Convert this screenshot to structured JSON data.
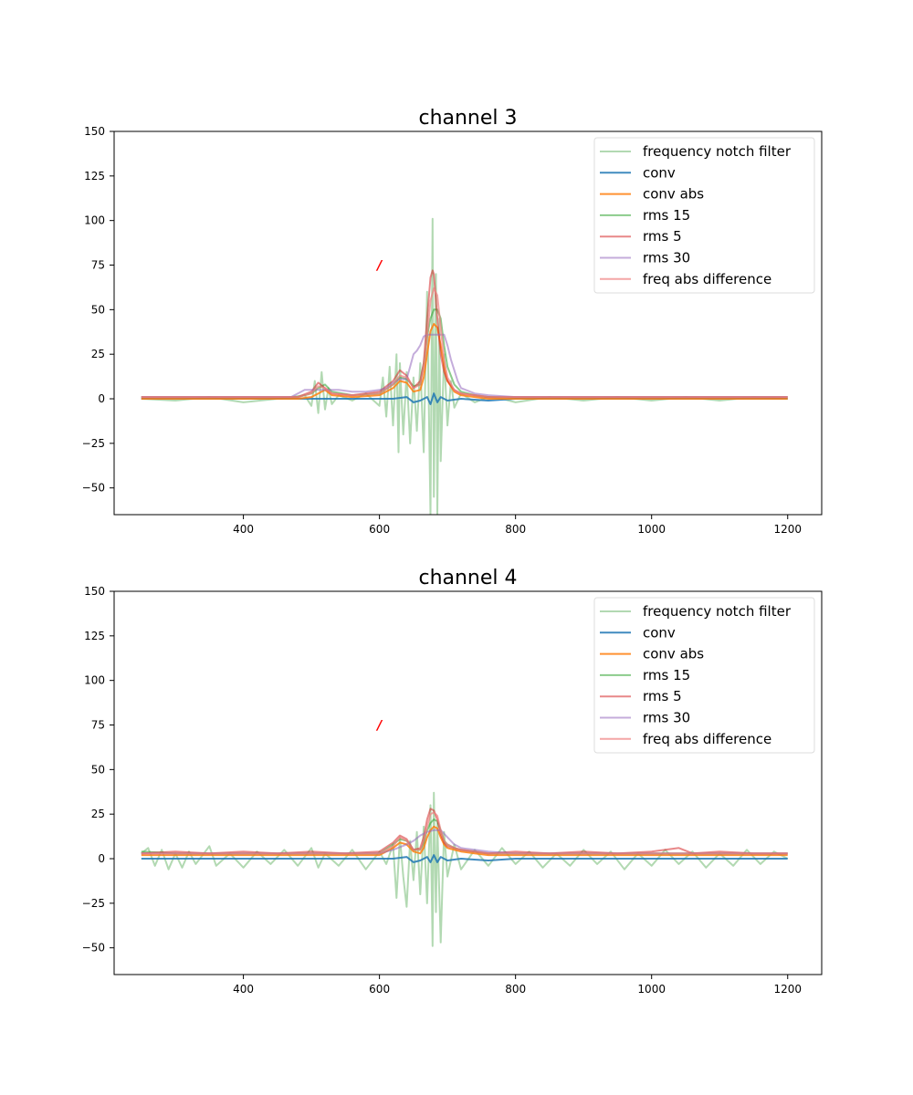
{
  "chart_data": [
    {
      "type": "line",
      "title": "channel 3",
      "xlabel": "",
      "ylabel": "",
      "xlim": [
        210,
        1250
      ],
      "ylim": [
        -65,
        150
      ],
      "xticks": [
        400,
        600,
        800,
        1000,
        1200
      ],
      "yticks": [
        -50,
        -25,
        0,
        25,
        50,
        75,
        100,
        125,
        150
      ],
      "legend_position": "upper right",
      "marker": {
        "x": 600,
        "y": 75,
        "label": "/",
        "color": "#ff0000"
      },
      "series": [
        {
          "name": "frequency notch filter",
          "color": "#7fbf7f",
          "opacity": 0.6,
          "x": [
            250,
            300,
            350,
            400,
            450,
            490,
            500,
            505,
            510,
            515,
            520,
            525,
            530,
            540,
            560,
            580,
            600,
            605,
            610,
            615,
            620,
            625,
            628,
            630,
            635,
            640,
            645,
            650,
            655,
            660,
            665,
            670,
            675,
            678,
            680,
            683,
            685,
            688,
            690,
            695,
            700,
            705,
            710,
            720,
            740,
            760,
            780,
            800,
            850,
            900,
            950,
            1000,
            1050,
            1100,
            1150,
            1200
          ],
          "y": [
            0,
            -1,
            1,
            -2,
            0,
            2,
            -4,
            10,
            -8,
            15,
            -6,
            6,
            -3,
            2,
            -1,
            3,
            -4,
            12,
            -10,
            18,
            -15,
            25,
            -30,
            20,
            -20,
            15,
            -25,
            12,
            -18,
            20,
            -30,
            60,
            -65,
            101,
            -55,
            70,
            -65,
            45,
            -35,
            25,
            -15,
            10,
            -5,
            3,
            -2,
            1,
            0,
            -2,
            1,
            -1,
            1,
            -1,
            1,
            -1,
            1,
            0
          ]
        },
        {
          "name": "conv",
          "color": "#1f77b4",
          "opacity": 0.85,
          "x": [
            250,
            400,
            500,
            560,
            600,
            620,
            640,
            650,
            660,
            670,
            675,
            680,
            685,
            690,
            700,
            720,
            760,
            800,
            900,
            1000,
            1200
          ],
          "y": [
            0,
            0,
            0,
            0,
            0,
            0,
            1,
            -2,
            -1,
            1,
            -3,
            3,
            -2,
            1,
            -1,
            0,
            -1,
            0,
            0,
            0,
            0
          ]
        },
        {
          "name": "conv abs",
          "color": "#ff7f0e",
          "opacity": 0.85,
          "x": [
            250,
            400,
            480,
            500,
            510,
            520,
            530,
            560,
            600,
            620,
            630,
            640,
            650,
            660,
            665,
            670,
            675,
            680,
            685,
            690,
            695,
            700,
            710,
            720,
            740,
            760,
            800,
            900,
            1000,
            1200
          ],
          "y": [
            0,
            0,
            0,
            1,
            3,
            5,
            2,
            1,
            2,
            6,
            10,
            9,
            4,
            5,
            12,
            25,
            38,
            42,
            40,
            30,
            18,
            10,
            4,
            2,
            1,
            0,
            0,
            0,
            0,
            0
          ]
        },
        {
          "name": "rms 15",
          "color": "#2ca02c",
          "opacity": 0.55,
          "x": [
            250,
            400,
            480,
            500,
            510,
            520,
            530,
            560,
            600,
            620,
            630,
            640,
            650,
            660,
            665,
            670,
            675,
            680,
            685,
            690,
            695,
            700,
            710,
            720,
            740,
            760,
            800,
            900,
            1000,
            1200
          ],
          "y": [
            1,
            1,
            1,
            3,
            6,
            8,
            4,
            2,
            3,
            8,
            12,
            11,
            7,
            8,
            20,
            35,
            45,
            50,
            50,
            45,
            30,
            18,
            8,
            4,
            2,
            1,
            1,
            1,
            1,
            1
          ]
        },
        {
          "name": "rms 5",
          "color": "#d62728",
          "opacity": 0.55,
          "x": [
            250,
            400,
            480,
            500,
            510,
            520,
            530,
            560,
            600,
            620,
            630,
            640,
            650,
            660,
            665,
            670,
            675,
            678,
            680,
            683,
            685,
            690,
            695,
            700,
            710,
            720,
            740,
            760,
            800,
            900,
            1000,
            1200
          ],
          "y": [
            1,
            1,
            1,
            4,
            9,
            6,
            3,
            2,
            4,
            10,
            16,
            13,
            6,
            10,
            20,
            45,
            68,
            72,
            70,
            55,
            45,
            25,
            15,
            10,
            5,
            3,
            2,
            1,
            1,
            1,
            1,
            1
          ]
        },
        {
          "name": "rms 30",
          "color": "#9467bd",
          "opacity": 0.55,
          "x": [
            250,
            400,
            470,
            480,
            490,
            500,
            520,
            540,
            560,
            580,
            600,
            610,
            620,
            630,
            640,
            645,
            650,
            655,
            660,
            665,
            670,
            680,
            690,
            695,
            700,
            705,
            710,
            715,
            720,
            740,
            760,
            800,
            1000,
            1200
          ],
          "y": [
            1,
            1,
            1,
            3,
            5,
            5,
            5,
            5,
            4,
            4,
            5,
            6,
            9,
            11,
            11,
            18,
            25,
            27,
            30,
            35,
            36,
            36,
            36,
            36,
            30,
            22,
            16,
            10,
            6,
            3,
            2,
            1,
            1,
            1
          ]
        },
        {
          "name": "freq abs difference",
          "color": "#f08080",
          "opacity": 0.7,
          "x": [
            250,
            400,
            480,
            500,
            510,
            520,
            530,
            560,
            600,
            620,
            630,
            640,
            650,
            660,
            665,
            670,
            675,
            680,
            685,
            690,
            695,
            700,
            710,
            720,
            740,
            760,
            800,
            900,
            1000,
            1200
          ],
          "y": [
            1,
            1,
            1,
            3,
            7,
            6,
            3,
            2,
            3,
            8,
            13,
            12,
            6,
            8,
            18,
            35,
            55,
            62,
            58,
            40,
            22,
            12,
            5,
            3,
            2,
            1,
            1,
            1,
            1,
            1
          ]
        }
      ]
    },
    {
      "type": "line",
      "title": "channel 4",
      "xlabel": "",
      "ylabel": "",
      "xlim": [
        210,
        1250
      ],
      "ylim": [
        -65,
        150
      ],
      "xticks": [
        400,
        600,
        800,
        1000,
        1200
      ],
      "yticks": [
        -50,
        -25,
        0,
        25,
        50,
        75,
        100,
        125,
        150
      ],
      "legend_position": "upper right",
      "marker": {
        "x": 600,
        "y": 75,
        "label": "/",
        "color": "#ff0000"
      },
      "series": [
        {
          "name": "frequency notch filter",
          "color": "#7fbf7f",
          "opacity": 0.6,
          "x": [
            250,
            260,
            270,
            280,
            290,
            300,
            310,
            320,
            330,
            340,
            350,
            360,
            380,
            400,
            420,
            440,
            460,
            480,
            500,
            510,
            520,
            540,
            560,
            580,
            600,
            610,
            620,
            625,
            630,
            635,
            640,
            645,
            650,
            655,
            660,
            665,
            670,
            675,
            678,
            680,
            683,
            685,
            690,
            695,
            700,
            710,
            720,
            740,
            760,
            780,
            800,
            820,
            840,
            860,
            880,
            900,
            920,
            940,
            960,
            980,
            1000,
            1020,
            1040,
            1060,
            1080,
            1100,
            1120,
            1140,
            1160,
            1180,
            1200
          ],
          "y": [
            3,
            6,
            -4,
            5,
            -6,
            3,
            -5,
            4,
            -3,
            2,
            7,
            -4,
            3,
            -5,
            4,
            -3,
            5,
            -4,
            6,
            -5,
            3,
            -4,
            5,
            -6,
            4,
            -3,
            8,
            -22,
            12,
            -10,
            -27,
            10,
            -12,
            15,
            -20,
            18,
            -25,
            30,
            -49,
            37,
            -30,
            20,
            -47,
            15,
            -10,
            8,
            -6,
            5,
            -4,
            6,
            -3,
            4,
            -5,
            3,
            -4,
            5,
            -3,
            4,
            -6,
            3,
            -4,
            5,
            -3,
            4,
            -5,
            3,
            -4,
            5,
            -3,
            4,
            0
          ]
        },
        {
          "name": "conv",
          "color": "#1f77b4",
          "opacity": 0.85,
          "x": [
            250,
            400,
            500,
            560,
            600,
            620,
            640,
            650,
            660,
            670,
            675,
            680,
            685,
            690,
            700,
            720,
            760,
            800,
            900,
            1000,
            1100,
            1200
          ],
          "y": [
            0,
            0,
            0,
            0,
            0,
            0,
            1,
            -2,
            -1,
            1,
            -2,
            2,
            -2,
            1,
            -1,
            0,
            -1,
            0,
            0,
            0,
            0,
            0
          ]
        },
        {
          "name": "conv abs",
          "color": "#ff7f0e",
          "opacity": 0.85,
          "x": [
            250,
            300,
            400,
            500,
            600,
            620,
            630,
            640,
            650,
            660,
            665,
            670,
            675,
            680,
            685,
            690,
            695,
            700,
            710,
            720,
            740,
            760,
            800,
            900,
            1000,
            1100,
            1200
          ],
          "y": [
            2,
            2,
            2,
            2,
            2,
            6,
            9,
            8,
            4,
            3,
            6,
            12,
            16,
            18,
            17,
            12,
            8,
            6,
            5,
            4,
            3,
            2,
            2,
            2,
            2,
            2,
            2
          ]
        },
        {
          "name": "rms 15",
          "color": "#2ca02c",
          "opacity": 0.55,
          "x": [
            250,
            300,
            400,
            500,
            600,
            620,
            630,
            640,
            650,
            660,
            665,
            670,
            675,
            680,
            685,
            690,
            695,
            700,
            710,
            720,
            740,
            760,
            800,
            900,
            1000,
            1100,
            1200
          ],
          "y": [
            4,
            3,
            3,
            3,
            3,
            8,
            11,
            10,
            5,
            5,
            9,
            16,
            20,
            22,
            21,
            16,
            10,
            8,
            6,
            5,
            4,
            3,
            3,
            3,
            3,
            3,
            3
          ]
        },
        {
          "name": "rms 5",
          "color": "#d62728",
          "opacity": 0.55,
          "x": [
            250,
            300,
            350,
            400,
            450,
            500,
            550,
            600,
            620,
            630,
            640,
            650,
            660,
            665,
            670,
            675,
            680,
            685,
            690,
            695,
            700,
            710,
            720,
            740,
            760,
            800,
            850,
            900,
            950,
            1000,
            1040,
            1060,
            1100,
            1150,
            1200
          ],
          "y": [
            3,
            4,
            3,
            4,
            3,
            4,
            3,
            4,
            9,
            13,
            11,
            5,
            6,
            12,
            22,
            28,
            27,
            22,
            14,
            9,
            7,
            6,
            5,
            4,
            3,
            4,
            3,
            4,
            3,
            4,
            6,
            3,
            4,
            3,
            3
          ]
        },
        {
          "name": "rms 30",
          "color": "#9467bd",
          "opacity": 0.55,
          "x": [
            250,
            300,
            400,
            500,
            600,
            620,
            640,
            650,
            660,
            670,
            680,
            690,
            700,
            710,
            720,
            740,
            760,
            800,
            900,
            1000,
            1100,
            1200
          ],
          "y": [
            3,
            3,
            3,
            3,
            3,
            5,
            8,
            10,
            13,
            15,
            16,
            16,
            12,
            8,
            6,
            5,
            4,
            3,
            3,
            3,
            3,
            3
          ]
        },
        {
          "name": "freq abs difference",
          "color": "#f08080",
          "opacity": 0.7,
          "x": [
            250,
            300,
            400,
            500,
            600,
            620,
            630,
            640,
            650,
            660,
            665,
            670,
            675,
            680,
            685,
            690,
            695,
            700,
            710,
            720,
            740,
            760,
            800,
            900,
            1000,
            1100,
            1200
          ],
          "y": [
            3,
            3,
            3,
            3,
            3,
            7,
            12,
            10,
            5,
            5,
            10,
            18,
            25,
            26,
            24,
            16,
            10,
            8,
            6,
            5,
            4,
            3,
            3,
            3,
            3,
            3,
            3
          ]
        }
      ]
    }
  ]
}
